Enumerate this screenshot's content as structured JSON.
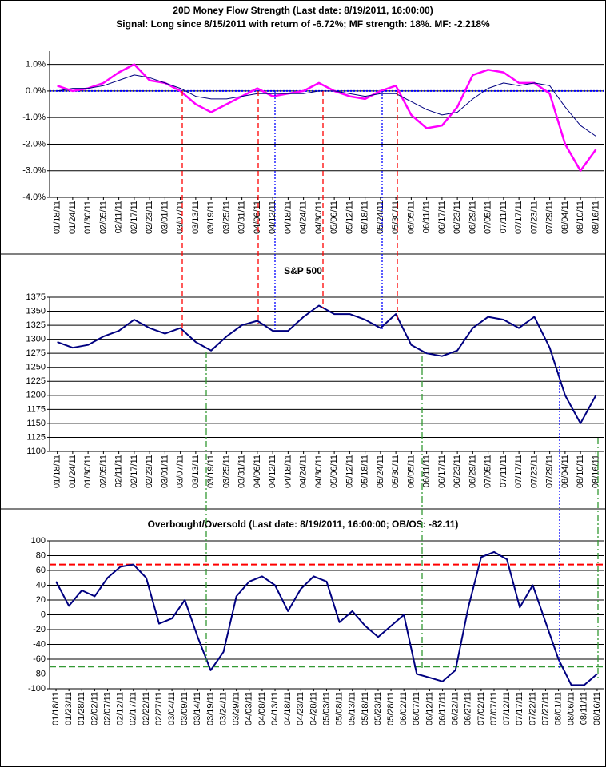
{
  "chart_data": [
    {
      "type": "line",
      "title": "20D Money Flow Strength (Last date: 8/19/2011, 16:00:00)",
      "subtitle": "Signal: Long since  8/15/2011 with return of -6.72%; MF strength: 18%. MF: -2.218%",
      "categories": [
        "01/18/11",
        "01/24/11",
        "01/30/11",
        "02/05/11",
        "02/11/11",
        "02/17/11",
        "02/23/11",
        "03/01/11",
        "03/07/11",
        "03/13/11",
        "03/19/11",
        "03/25/11",
        "03/31/11",
        "04/06/11",
        "04/12/11",
        "04/18/11",
        "04/24/11",
        "04/30/11",
        "05/06/11",
        "05/12/11",
        "05/18/11",
        "05/24/11",
        "05/30/11",
        "06/05/11",
        "06/11/11",
        "06/17/11",
        "06/23/11",
        "06/29/11",
        "07/05/11",
        "07/11/11",
        "07/17/11",
        "07/23/11",
        "07/29/11",
        "08/04/11",
        "08/10/11",
        "08/16/11"
      ],
      "series": [
        {
          "color": "#ff00ff",
          "width": 2.5,
          "values": [
            0.2,
            0.0,
            0.1,
            0.3,
            0.7,
            1.0,
            0.4,
            0.3,
            0.0,
            -0.5,
            -0.8,
            -0.5,
            -0.2,
            0.1,
            -0.2,
            -0.1,
            0.0,
            0.3,
            0.0,
            -0.2,
            -0.3,
            0.0,
            0.2,
            -0.9,
            -1.4,
            -1.3,
            -0.6,
            0.6,
            0.8,
            0.7,
            0.3,
            0.3,
            -0.1,
            -2.0,
            -3.0,
            -2.2
          ]
        },
        {
          "color": "#000080",
          "width": 1,
          "values": [
            0.0,
            0.1,
            0.1,
            0.2,
            0.4,
            0.6,
            0.5,
            0.3,
            0.1,
            -0.2,
            -0.3,
            -0.3,
            -0.2,
            -0.1,
            -0.1,
            -0.1,
            -0.1,
            0.0,
            0.0,
            -0.1,
            -0.2,
            -0.1,
            -0.1,
            -0.4,
            -0.7,
            -0.9,
            -0.8,
            -0.3,
            0.1,
            0.3,
            0.2,
            0.3,
            0.2,
            -0.6,
            -1.3,
            -1.7
          ]
        }
      ],
      "hlines": [
        {
          "value": 0,
          "color": "#0000ff",
          "dash": "2,2"
        }
      ],
      "ylim": [
        -4,
        1.5
      ],
      "yticks": [
        {
          "value": -4,
          "label": "-4.0%"
        },
        {
          "value": -3,
          "label": "-3.0%"
        },
        {
          "value": -2,
          "label": "-2.0%"
        },
        {
          "value": -1,
          "label": "-1.0%"
        },
        {
          "value": 0,
          "label": "0.0%"
        },
        {
          "value": 1,
          "label": "1.0%"
        }
      ],
      "grid": true
    },
    {
      "type": "line",
      "title": "S&P 500",
      "categories": [
        "01/18/11",
        "01/24/11",
        "01/30/11",
        "02/05/11",
        "02/11/11",
        "02/17/11",
        "02/23/11",
        "03/01/11",
        "03/07/11",
        "03/13/11",
        "03/19/11",
        "03/25/11",
        "03/31/11",
        "04/06/11",
        "04/12/11",
        "04/18/11",
        "04/24/11",
        "04/30/11",
        "05/06/11",
        "05/12/11",
        "05/18/11",
        "05/24/11",
        "05/30/11",
        "06/05/11",
        "06/11/11",
        "06/17/11",
        "06/23/11",
        "06/29/11",
        "07/05/11",
        "07/11/11",
        "07/17/11",
        "07/23/11",
        "07/29/11",
        "08/04/11",
        "08/10/11",
        "08/16/11"
      ],
      "series": [
        {
          "color": "#000080",
          "width": 2,
          "values": [
            1295,
            1285,
            1290,
            1305,
            1315,
            1335,
            1320,
            1310,
            1320,
            1295,
            1280,
            1305,
            1325,
            1333,
            1315,
            1315,
            1340,
            1360,
            1345,
            1345,
            1335,
            1320,
            1345,
            1290,
            1275,
            1270,
            1280,
            1320,
            1340,
            1335,
            1320,
            1340,
            1285,
            1200,
            1150,
            1200
          ]
        }
      ],
      "ylim": [
        1100,
        1375
      ],
      "yticks": [
        1100,
        1125,
        1150,
        1175,
        1200,
        1225,
        1250,
        1275,
        1300,
        1325,
        1350,
        1375
      ],
      "grid": true
    },
    {
      "type": "line",
      "title": "Overbought/Oversold (Last date: 8/19/2011, 16:00:00; OB/OS: -82.11)",
      "categories": [
        "01/18/11",
        "01/23/11",
        "01/28/11",
        "02/02/11",
        "02/07/11",
        "02/12/11",
        "02/17/11",
        "02/22/11",
        "02/27/11",
        "03/04/11",
        "03/09/11",
        "03/14/11",
        "03/19/11",
        "03/24/11",
        "03/29/11",
        "04/03/11",
        "04/08/11",
        "04/13/11",
        "04/18/11",
        "04/23/11",
        "04/28/11",
        "05/03/11",
        "05/08/11",
        "05/13/11",
        "05/18/11",
        "05/23/11",
        "05/28/11",
        "06/02/11",
        "06/07/11",
        "06/12/11",
        "06/17/11",
        "06/22/11",
        "06/27/11",
        "07/02/11",
        "07/07/11",
        "07/12/11",
        "07/17/11",
        "07/22/11",
        "07/27/11",
        "08/01/11",
        "08/06/11",
        "08/11/11",
        "08/16/11"
      ],
      "series": [
        {
          "color": "#000080",
          "width": 2,
          "values": [
            45,
            12,
            33,
            25,
            50,
            65,
            68,
            50,
            -12,
            -5,
            20,
            -30,
            -75,
            -50,
            25,
            45,
            52,
            40,
            5,
            35,
            52,
            45,
            -10,
            5,
            -15,
            -30,
            -15,
            0,
            -80,
            -85,
            -90,
            -75,
            10,
            78,
            85,
            75,
            10,
            40,
            -10,
            -60,
            -95,
            -95,
            -80
          ]
        }
      ],
      "hlines": [
        {
          "value": 68,
          "color": "#ff0000",
          "dash": "8,4"
        },
        {
          "value": -70,
          "color": "#339933",
          "dash": "8,4"
        }
      ],
      "ylim": [
        -100,
        100
      ],
      "yticks": [
        -100,
        -80,
        -60,
        -40,
        -20,
        0,
        20,
        40,
        60,
        80,
        100
      ],
      "grid": true
    }
  ]
}
